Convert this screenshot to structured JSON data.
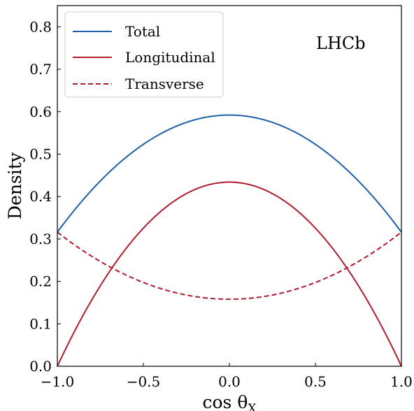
{
  "chart_data": {
    "type": "line",
    "xlabel": "cos θ",
    "xlabel_sub": "X",
    "ylabel": "Density",
    "xlim": [
      -1.0,
      1.0
    ],
    "ylim": [
      0.0,
      0.85
    ],
    "xticks": [
      "−1.0",
      "−0.5",
      "0.0",
      "0.5",
      "1.0"
    ],
    "yticks": [
      "0.0",
      "0.1",
      "0.2",
      "0.3",
      "0.4",
      "0.5",
      "0.6",
      "0.7",
      "0.8"
    ],
    "grid": false,
    "legend_position": "top-left",
    "annotation": "LHCb",
    "series": [
      {
        "name": "Total",
        "color": "#1f5fa8",
        "style": "solid",
        "x": [
          -1.0,
          0.0,
          1.0
        ],
        "y": [
          0.316,
          0.592,
          0.316
        ]
      },
      {
        "name": "Longitudinal",
        "color": "#b01c2e",
        "style": "solid",
        "x": [
          -1.0,
          0.0,
          1.0
        ],
        "y": [
          0.0,
          0.434,
          0.0
        ]
      },
      {
        "name": "Transverse",
        "color": "#b01c2e",
        "style": "dashed",
        "x": [
          -1.0,
          0.0,
          1.0
        ],
        "y": [
          0.316,
          0.158,
          0.316
        ]
      }
    ]
  }
}
